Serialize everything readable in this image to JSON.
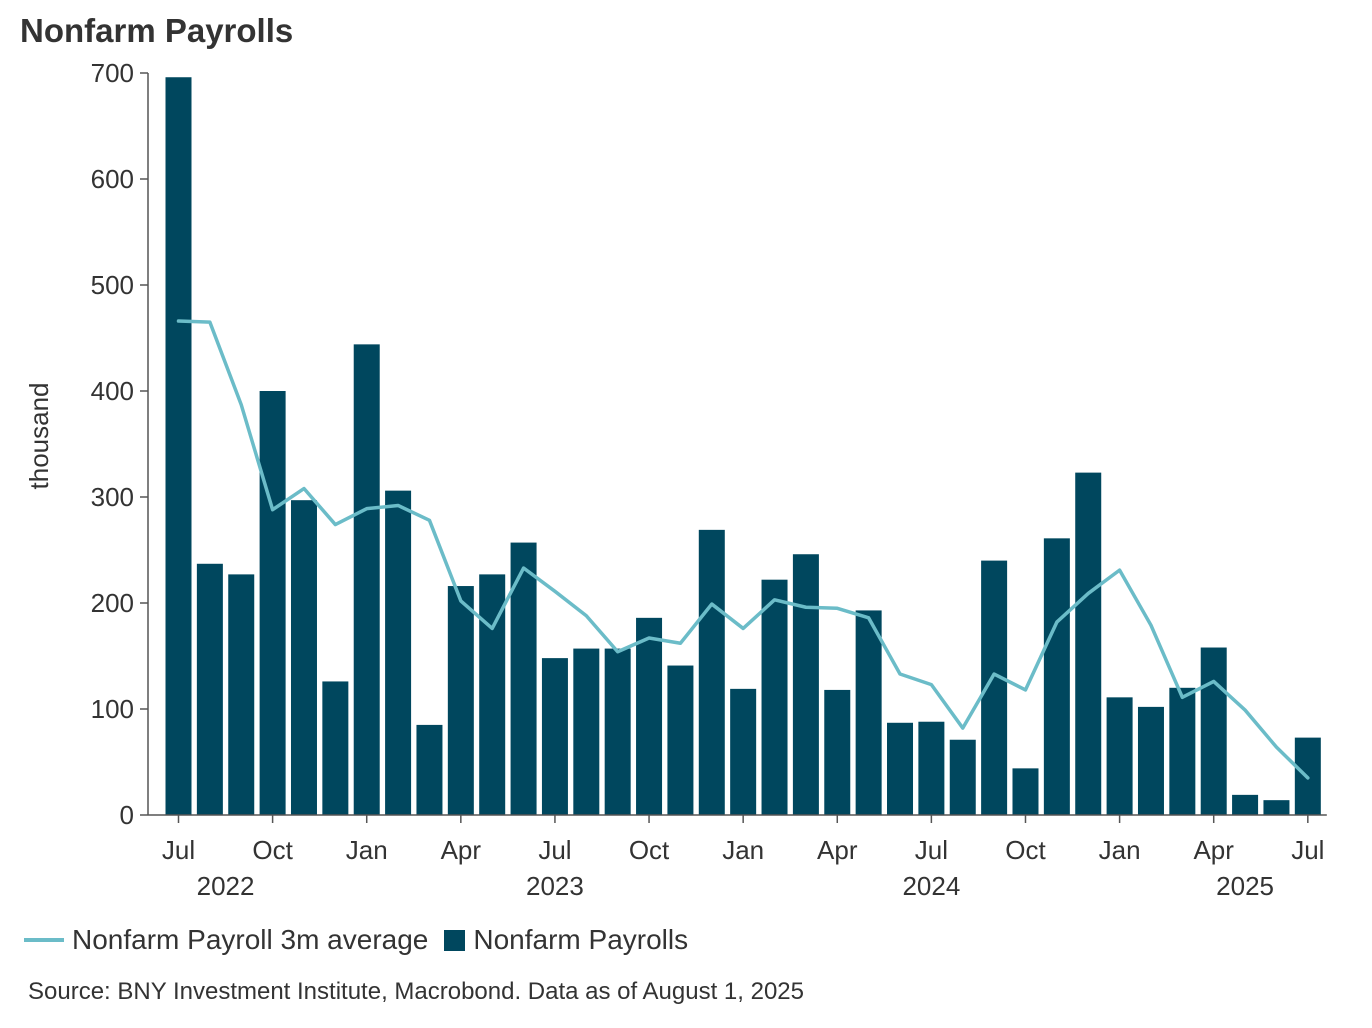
{
  "title": "Nonfarm Payrolls",
  "source": "Source: BNY Investment Institute, Macrobond. Data as of August 1, 2025",
  "colors": {
    "bar": "#00475e",
    "line": "#6bbcc8"
  },
  "chart_data": {
    "type": "bar",
    "ylabel": "thousand",
    "ylim": [
      0,
      700
    ],
    "yticks": [
      0,
      100,
      200,
      300,
      400,
      500,
      600,
      700
    ],
    "grid": false,
    "legend_position": "bottom-left",
    "x_tick_labels": [
      {
        "index": 0,
        "label": "Jul"
      },
      {
        "index": 3,
        "label": "Oct"
      },
      {
        "index": 6,
        "label": "Jan"
      },
      {
        "index": 9,
        "label": "Apr"
      },
      {
        "index": 12,
        "label": "Jul"
      },
      {
        "index": 15,
        "label": "Oct"
      },
      {
        "index": 18,
        "label": "Jan"
      },
      {
        "index": 21,
        "label": "Apr"
      },
      {
        "index": 24,
        "label": "Jul"
      },
      {
        "index": 27,
        "label": "Oct"
      },
      {
        "index": 30,
        "label": "Jan"
      },
      {
        "index": 33,
        "label": "Apr"
      },
      {
        "index": 36,
        "label": "Jul"
      }
    ],
    "year_labels": [
      {
        "index": 1.5,
        "label": "2022"
      },
      {
        "index": 12,
        "label": "2023"
      },
      {
        "index": 24,
        "label": "2024"
      },
      {
        "index": 34,
        "label": "2025"
      }
    ],
    "categories": [
      "2022-07",
      "2022-08",
      "2022-09",
      "2022-10",
      "2022-11",
      "2022-12",
      "2023-01",
      "2023-02",
      "2023-03",
      "2023-04",
      "2023-05",
      "2023-06",
      "2023-07",
      "2023-08",
      "2023-09",
      "2023-10",
      "2023-11",
      "2023-12",
      "2024-01",
      "2024-02",
      "2024-03",
      "2024-04",
      "2024-05",
      "2024-06",
      "2024-07",
      "2024-08",
      "2024-09",
      "2024-10",
      "2024-11",
      "2024-12",
      "2025-01",
      "2025-02",
      "2025-03",
      "2025-04",
      "2025-05",
      "2025-06",
      "2025-07"
    ],
    "series": [
      {
        "name": "Nonfarm Payrolls",
        "kind": "bar",
        "values": [
          696,
          237,
          227,
          400,
          297,
          126,
          444,
          306,
          85,
          216,
          227,
          257,
          148,
          157,
          157,
          186,
          141,
          269,
          119,
          222,
          246,
          118,
          193,
          87,
          88,
          71,
          240,
          44,
          261,
          323,
          111,
          102,
          120,
          158,
          19,
          14,
          73
        ]
      },
      {
        "name": "Nonfarm Payroll 3m average",
        "kind": "line",
        "values": [
          466,
          465,
          387,
          288,
          308,
          274,
          289,
          292,
          278,
          202,
          176,
          233,
          211,
          188,
          154,
          167,
          162,
          199,
          176,
          203,
          196,
          195,
          186,
          133,
          123,
          82,
          133,
          118,
          182,
          209,
          231,
          179,
          111,
          126,
          99,
          64,
          35
        ]
      }
    ]
  }
}
